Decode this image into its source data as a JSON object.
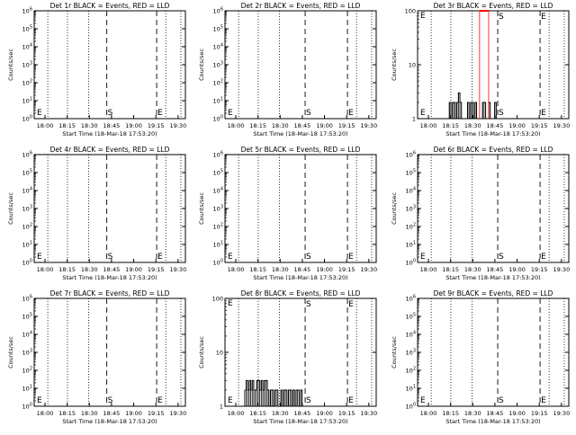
{
  "figure": {
    "xlabel": "Start Time (18-Mar-18 17:53:20)",
    "ylabel": "Counts/sec",
    "x_tick_labels": [
      "18:00",
      "18:15",
      "18:30",
      "18:45",
      "19:00",
      "19:15",
      "19:30"
    ],
    "event_color": "#000000",
    "lld_color": "#ff0000"
  },
  "chart_data": [
    {
      "type": "line",
      "title": "Det 1r BLACK = Events, RED = LLD",
      "xlabel": "Start Time (18-Mar-18 17:53:20)",
      "ylabel": "Counts/sec",
      "yscale": "log",
      "ylim": [
        1,
        1000000
      ],
      "y_tick_labels": [
        "10^0",
        "10^1",
        "10^2",
        "10^3",
        "10^4",
        "10^5",
        "10^6"
      ],
      "markers": [
        {
          "label": "E",
          "t": 0
        },
        {
          "label": "S",
          "t": 0.48
        },
        {
          "label": "E",
          "t": 0.81
        }
      ],
      "series": []
    },
    {
      "type": "line",
      "title": "Det 2r BLACK = Events, RED = LLD",
      "xlabel": "Start Time (18-Mar-18 17:53:20)",
      "ylabel": "Counts/sec",
      "yscale": "log",
      "ylim": [
        1,
        1000000
      ],
      "y_tick_labels": [
        "10^0",
        "10^1",
        "10^2",
        "10^3",
        "10^4",
        "10^5",
        "10^6"
      ],
      "markers": [
        {
          "label": "E",
          "t": 0
        },
        {
          "label": "S",
          "t": 0.53
        },
        {
          "label": "E",
          "t": 0.81
        }
      ],
      "series": []
    },
    {
      "type": "line",
      "title": "Det 3r BLACK = Events, RED = LLD",
      "xlabel": "Start Time (18-Mar-18 17:53:20)",
      "ylabel": "Counts/sec",
      "yscale": "log",
      "ylim": [
        1,
        100
      ],
      "y_tick_labels": [
        "1",
        "10",
        "100"
      ],
      "markers": [
        {
          "label": "E",
          "t": 0
        },
        {
          "label": "S",
          "t": 0.53
        },
        {
          "label": "E",
          "t": 0.81
        }
      ],
      "series": [
        {
          "color": "#000000",
          "x": [
            0.2,
            0.21,
            0.22,
            0.23,
            0.24,
            0.25,
            0.26,
            0.27,
            0.28,
            0.29,
            0.3,
            0.31,
            0.32,
            0.33,
            0.34,
            0.35,
            0.36,
            0.37,
            0.38,
            0.39,
            0.4,
            0.41,
            0.42,
            0.43,
            0.44,
            0.45,
            0.46,
            0.47,
            0.48,
            0.49,
            0.5,
            0.51,
            0.52
          ],
          "y": [
            1,
            2,
            1,
            2,
            2,
            1,
            2,
            3,
            2,
            1,
            1,
            1,
            1,
            2,
            1,
            2,
            2,
            1,
            2,
            1,
            1,
            1,
            1,
            2,
            2,
            1,
            1,
            2,
            1,
            1,
            1,
            2,
            1
          ]
        },
        {
          "color": "#ff0000",
          "x": [
            0.41,
            0.47
          ],
          "y": [
            100,
            100
          ]
        }
      ]
    },
    {
      "type": "line",
      "title": "Det 4r BLACK = Events, RED = LLD",
      "xlabel": "Start Time (18-Mar-18 17:53:20)",
      "ylabel": "Counts/sec",
      "yscale": "log",
      "ylim": [
        1,
        1000000
      ],
      "y_tick_labels": [
        "10^0",
        "10^1",
        "10^2",
        "10^3",
        "10^4",
        "10^5",
        "10^6"
      ],
      "markers": [
        {
          "label": "E",
          "t": 0
        },
        {
          "label": "S",
          "t": 0.48
        },
        {
          "label": "E",
          "t": 0.81
        }
      ],
      "series": []
    },
    {
      "type": "line",
      "title": "Det 5r BLACK = Events, RED = LLD",
      "xlabel": "Start Time (18-Mar-18 17:53:20)",
      "ylabel": "Counts/sec",
      "yscale": "log",
      "ylim": [
        1,
        1000000
      ],
      "y_tick_labels": [
        "10^0",
        "10^1",
        "10^2",
        "10^3",
        "10^4",
        "10^5",
        "10^6"
      ],
      "markers": [
        {
          "label": "E",
          "t": 0
        },
        {
          "label": "S",
          "t": 0.53
        },
        {
          "label": "E",
          "t": 0.81
        }
      ],
      "series": []
    },
    {
      "type": "line",
      "title": "Det 6r BLACK = Events, RED = LLD",
      "xlabel": "Start Time (18-Mar-18 17:53:20)",
      "ylabel": "Counts/sec",
      "yscale": "log",
      "ylim": [
        1,
        1000000
      ],
      "y_tick_labels": [
        "10^0",
        "10^1",
        "10^2",
        "10^3",
        "10^4",
        "10^5",
        "10^6"
      ],
      "markers": [
        {
          "label": "E",
          "t": 0
        },
        {
          "label": "S",
          "t": 0.53
        },
        {
          "label": "E",
          "t": 0.81
        }
      ],
      "series": []
    },
    {
      "type": "line",
      "title": "Det 7r BLACK = Events, RED = LLD",
      "xlabel": "Start Time (18-Mar-18 17:53:20)",
      "ylabel": "Counts/sec",
      "yscale": "log",
      "ylim": [
        1,
        1000000
      ],
      "y_tick_labels": [
        "10^0",
        "10^1",
        "10^2",
        "10^3",
        "10^4",
        "10^5",
        "10^6"
      ],
      "markers": [
        {
          "label": "E",
          "t": 0
        },
        {
          "label": "S",
          "t": 0.48
        },
        {
          "label": "E",
          "t": 0.81
        }
      ],
      "series": []
    },
    {
      "type": "line",
      "title": "Det 8r BLACK = Events, RED = LLD",
      "xlabel": "Start Time (18-Mar-18 17:53:20)",
      "ylabel": "Counts/sec",
      "yscale": "log",
      "ylim": [
        1,
        100
      ],
      "y_tick_labels": [
        "1",
        "10",
        "100"
      ],
      "markers": [
        {
          "label": "E",
          "t": 0
        },
        {
          "label": "S",
          "t": 0.53
        },
        {
          "label": "E",
          "t": 0.81
        }
      ],
      "series": [
        {
          "color": "#000000",
          "x": [
            0.13,
            0.14,
            0.15,
            0.16,
            0.17,
            0.18,
            0.19,
            0.2,
            0.21,
            0.22,
            0.23,
            0.24,
            0.25,
            0.26,
            0.27,
            0.28,
            0.29,
            0.3,
            0.31,
            0.32,
            0.33,
            0.34,
            0.35,
            0.36,
            0.37,
            0.38,
            0.39,
            0.4,
            0.41,
            0.42,
            0.43,
            0.44,
            0.45,
            0.46,
            0.47,
            0.48,
            0.49,
            0.5,
            0.51,
            0.52
          ],
          "y": [
            2,
            3,
            2,
            3,
            2,
            3,
            2,
            2,
            3,
            3,
            2,
            3,
            2,
            3,
            3,
            2,
            1,
            2,
            2,
            1,
            2,
            2,
            1,
            1,
            2,
            1,
            2,
            2,
            1,
            2,
            2,
            1,
            2,
            1,
            2,
            2,
            1,
            2,
            1,
            1
          ]
        }
      ]
    },
    {
      "type": "line",
      "title": "Det 9r BLACK = Events, RED = LLD",
      "xlabel": "Start Time (18-Mar-18 17:53:20)",
      "ylabel": "Counts/sec",
      "yscale": "log",
      "ylim": [
        1,
        1000000
      ],
      "y_tick_labels": [
        "10^0",
        "10^1",
        "10^2",
        "10^3",
        "10^4",
        "10^5",
        "10^6"
      ],
      "markers": [
        {
          "label": "E",
          "t": 0
        },
        {
          "label": "S",
          "t": 0.53
        },
        {
          "label": "E",
          "t": 0.81
        }
      ],
      "series": []
    }
  ]
}
